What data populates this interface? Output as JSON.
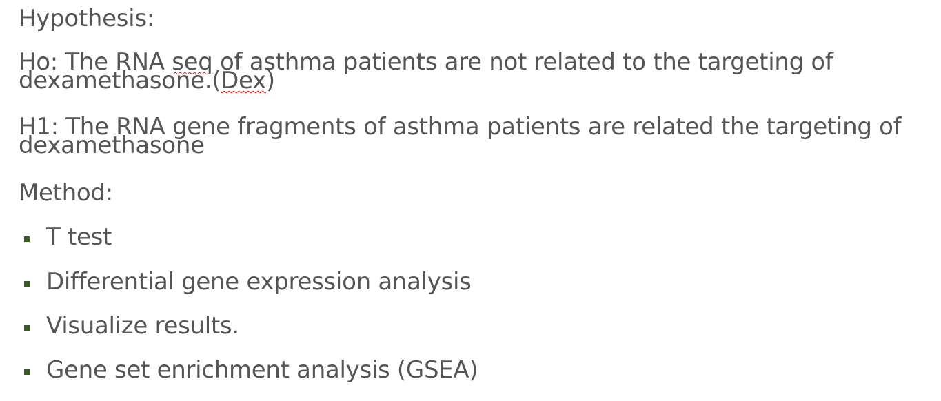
{
  "hypothesis_heading": "Hypothesis:",
  "h0": {
    "prefix": "Ho: The RNA ",
    "misspelled_1": "seq",
    "middle": " of asthma patients are not related to the targeting of dexamethasone.(",
    "misspelled_2": "Dex",
    "suffix": ")"
  },
  "h1": "H1: The RNA gene fragments of asthma patients are related the targeting of dexamethasone",
  "method_heading": "Method:",
  "methods": [
    "T test",
    "Differential gene expression analysis",
    "Visualize results.",
    "Gene set enrichment analysis (GSEA)"
  ],
  "colors": {
    "text": "#555555",
    "bullet": "#3b5a1f",
    "spellcheck_underline": "#d11f1f"
  }
}
